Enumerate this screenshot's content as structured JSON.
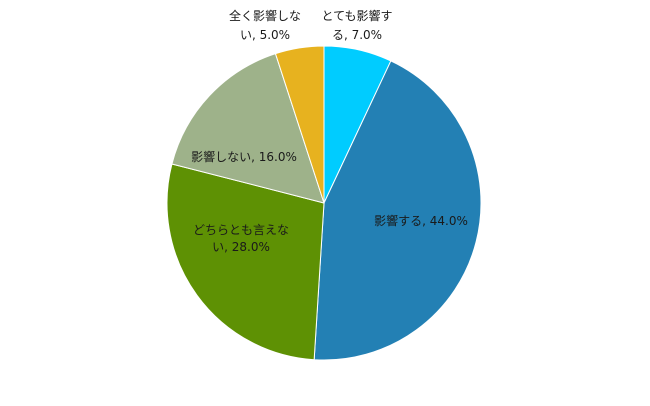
{
  "chart_data": {
    "type": "pie",
    "title": "",
    "start_angle_deg": 0,
    "direction": "clockwise",
    "slices": [
      {
        "label": "とても影響する",
        "value": 7.0,
        "color": "#00CCFF",
        "data_label_lines": [
          "とても影響す",
          "る, 7.0%"
        ]
      },
      {
        "label": "影響する",
        "value": 44.0,
        "color": "#2380B4",
        "data_label_lines": [
          "影響する, 44.0%"
        ]
      },
      {
        "label": "どちらとも言えない",
        "value": 28.0,
        "color": "#5E9104",
        "data_label_lines": [
          "どちらとも言えな",
          "い, 28.0%"
        ]
      },
      {
        "label": "影響しない",
        "value": 16.0,
        "color": "#9EB28A",
        "data_label_lines": [
          "影響しない, 16.0%"
        ]
      },
      {
        "label": "全く影響しない",
        "value": 5.0,
        "color": "#E7B21F",
        "data_label_lines": [
          "全く影響しな",
          "い, 5.0%"
        ]
      }
    ]
  }
}
